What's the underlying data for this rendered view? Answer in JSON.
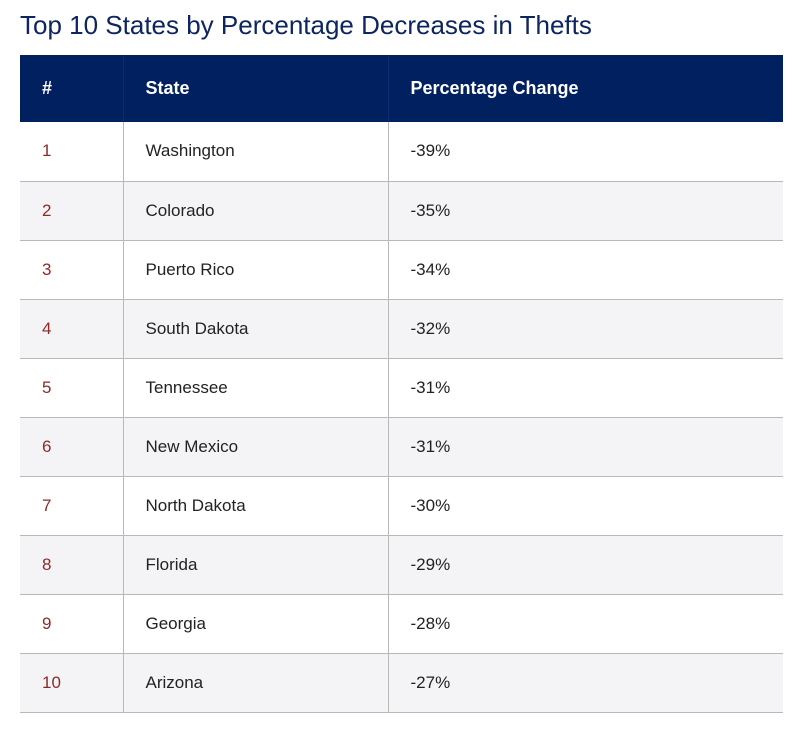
{
  "title": "Top 10 States by Percentage Decreases in Thefts",
  "table": {
    "headers": {
      "rank": "#",
      "state": "State",
      "change": "Percentage Change"
    },
    "rows": [
      {
        "rank": "1",
        "state": "Washington",
        "change": "-39%"
      },
      {
        "rank": "2",
        "state": "Colorado",
        "change": "-35%"
      },
      {
        "rank": "3",
        "state": "Puerto Rico",
        "change": "-34%"
      },
      {
        "rank": "4",
        "state": "South Dakota",
        "change": "-32%"
      },
      {
        "rank": "5",
        "state": "Tennessee",
        "change": "-31%"
      },
      {
        "rank": "6",
        "state": "New Mexico",
        "change": "-31%"
      },
      {
        "rank": "7",
        "state": "North Dakota",
        "change": "-30%"
      },
      {
        "rank": "8",
        "state": "Florida",
        "change": "-29%"
      },
      {
        "rank": "9",
        "state": "Georgia",
        "change": "-28%"
      },
      {
        "rank": "10",
        "state": "Arizona",
        "change": "-27%"
      }
    ]
  },
  "colors": {
    "header_bg": "#012060",
    "title": "#0d2560",
    "rank_text": "#8c2a2a",
    "stripe": "#f4f4f6"
  }
}
